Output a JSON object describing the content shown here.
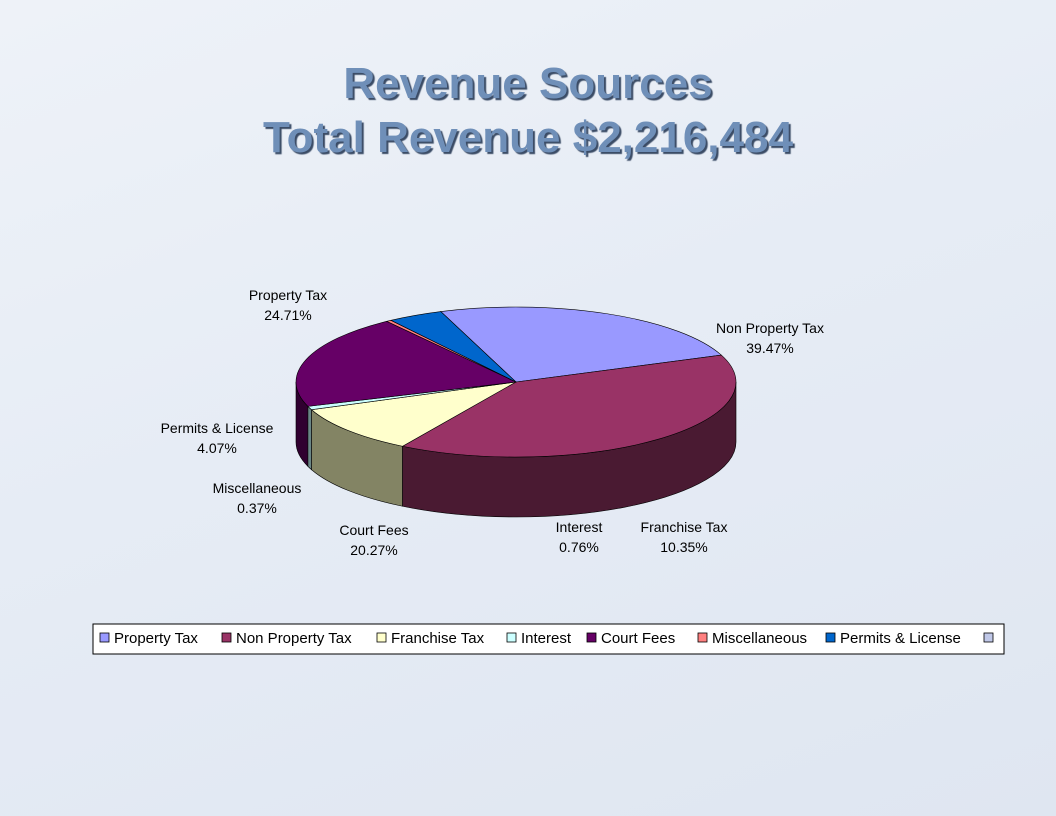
{
  "slide": {
    "title_line1": "Revenue Sources",
    "title_line2": "Total Revenue $2,216,484"
  },
  "chart_data": {
    "type": "pie",
    "title": "Revenue Sources Total Revenue $2,216,484",
    "three_d": true,
    "legend_position": "bottom",
    "slices": [
      {
        "name": "Property Tax",
        "value": 24.71,
        "label": "24.71%",
        "color": "#9999ff",
        "side_color": "#44447a"
      },
      {
        "name": "Non Property Tax",
        "value": 39.47,
        "label": "39.47%",
        "color": "#993366",
        "side_color": "#4a1a32"
      },
      {
        "name": "Franchise Tax",
        "value": 10.35,
        "label": "10.35%",
        "color": "#ffffcc",
        "side_color": "#838464"
      },
      {
        "name": "Interest",
        "value": 0.76,
        "label": "0.76%",
        "color": "#ccffff",
        "side_color": "#6a8686"
      },
      {
        "name": "Court Fees",
        "value": 20.27,
        "label": "20.27%",
        "color": "#660066",
        "side_color": "#300030"
      },
      {
        "name": "Miscellaneous",
        "value": 0.37,
        "label": "0.37%",
        "color": "#ff8080",
        "side_color": "#7a3a3a"
      },
      {
        "name": "Permits & License",
        "value": 4.07,
        "label": "4.07%",
        "color": "#0066cc",
        "side_color": "#003366"
      }
    ],
    "legend_extra_entry_color": "#c0c8e8"
  }
}
